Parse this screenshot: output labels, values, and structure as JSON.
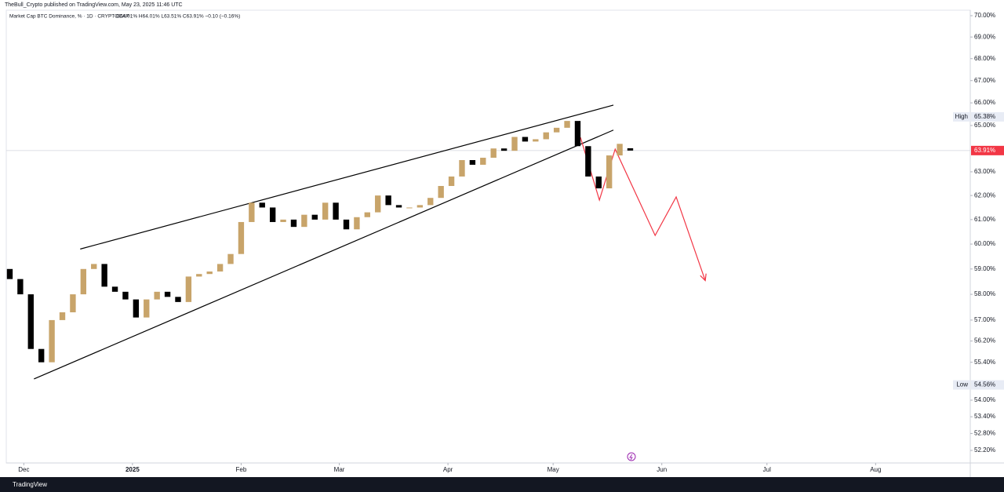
{
  "header": "TheBull_Crypto published on TradingView.com, May 23, 2025 11:46 UTC",
  "footer": "TradingView",
  "chart_data": {
    "type": "candlestick",
    "title": "Market Cap BTC Dominance, % · 1D · CRYPTOCAP",
    "ohlc_text": "O64.01% H64.01% L63.51% C63.91% −0.10 (−0.16%)",
    "log_scale": true,
    "up_color": "#c8a46a",
    "down_color": "#000000",
    "x": [
      -4,
      -1,
      2,
      5,
      8,
      11,
      14,
      17,
      20,
      23,
      26,
      29,
      32,
      35,
      38,
      41,
      44,
      47,
      50,
      53,
      56,
      59,
      62,
      65,
      68,
      71,
      74,
      77,
      80,
      83,
      86,
      89,
      92,
      95,
      98,
      101,
      104,
      107,
      110,
      113,
      116,
      119,
      122,
      125,
      128,
      131,
      134,
      137,
      140,
      143,
      146,
      149,
      152,
      155,
      158,
      161,
      164,
      167,
      170,
      173
    ],
    "open": [
      59.0,
      58.6,
      58.0,
      55.9,
      55.4,
      57.0,
      57.3,
      58.0,
      59.0,
      59.2,
      58.3,
      58.1,
      57.8,
      57.1,
      57.8,
      58.1,
      57.9,
      57.7,
      58.7,
      58.8,
      58.9,
      59.2,
      59.6,
      60.9,
      61.7,
      61.5,
      60.9,
      61.0,
      60.7,
      61.2,
      61.0,
      61.7,
      61.0,
      60.6,
      61.1,
      61.3,
      62.0,
      61.6,
      61.5,
      61.5,
      61.6,
      61.9,
      62.4,
      62.8,
      63.5,
      63.3,
      63.6,
      64.0,
      63.9,
      64.5,
      64.3,
      64.4,
      64.7,
      64.9,
      65.2,
      64.1,
      62.8,
      62.3,
      63.7,
      64.01
    ],
    "high": {
      "name": "High",
      "value": 65.38,
      "label": "65.38%"
    },
    "low": {
      "name": "Low",
      "value": 54.56,
      "label": "54.56%"
    },
    "close": [
      58.6,
      58.0,
      55.9,
      55.4,
      57.0,
      57.3,
      58.0,
      59.0,
      59.2,
      58.3,
      58.1,
      57.8,
      57.1,
      57.8,
      58.1,
      57.9,
      57.7,
      58.7,
      58.8,
      58.9,
      59.2,
      59.6,
      60.9,
      61.7,
      61.5,
      60.9,
      61.0,
      60.7,
      61.2,
      61.0,
      61.7,
      61.0,
      60.6,
      61.1,
      61.3,
      62.0,
      61.6,
      61.5,
      61.5,
      61.6,
      61.9,
      62.4,
      62.8,
      63.5,
      63.3,
      63.6,
      64.0,
      63.9,
      64.5,
      64.3,
      64.4,
      64.7,
      64.9,
      65.2,
      64.1,
      62.8,
      62.3,
      63.7,
      64.2,
      63.91
    ],
    "xlim": [
      -5,
      270
    ],
    "xticks": [
      {
        "value": 0,
        "label": "Dec"
      },
      {
        "value": 31,
        "label": "2025"
      },
      {
        "value": 62,
        "label": "Feb"
      },
      {
        "value": 90,
        "label": "Mar"
      },
      {
        "value": 121,
        "label": "Apr"
      },
      {
        "value": 151,
        "label": "May"
      },
      {
        "value": 182,
        "label": "Jun"
      },
      {
        "value": 212,
        "label": "Jul"
      },
      {
        "value": 243,
        "label": "Aug"
      }
    ],
    "ylim": [
      51.76,
      70.26
    ],
    "yticks": [
      {
        "value": 70,
        "label": "70.00%"
      },
      {
        "value": 69,
        "label": "69.00%"
      },
      {
        "value": 68,
        "label": "68.00%"
      },
      {
        "value": 67,
        "label": "67.00%"
      },
      {
        "value": 66,
        "label": "66.00%"
      },
      {
        "value": 65,
        "label": "65.00%"
      },
      {
        "value": 63,
        "label": "63.00%"
      },
      {
        "value": 62,
        "label": "62.00%"
      },
      {
        "value": 61,
        "label": "61.00%"
      },
      {
        "value": 60,
        "label": "60.00%"
      },
      {
        "value": 59,
        "label": "59.00%"
      },
      {
        "value": 58,
        "label": "58.00%"
      },
      {
        "value": 57,
        "label": "57.00%"
      },
      {
        "value": 56.2,
        "label": "56.20%"
      },
      {
        "value": 55.4,
        "label": "55.40%"
      },
      {
        "value": 54,
        "label": "54.00%"
      },
      {
        "value": 53.4,
        "label": "53.40%"
      },
      {
        "value": 52.8,
        "label": "52.80%"
      },
      {
        "value": 52.2,
        "label": "52.20%"
      }
    ],
    "last_price": {
      "value": 63.91,
      "label": "63.91%",
      "color": "#f23645"
    },
    "drawings": [
      {
        "color": "#000000",
        "x": [
          16.1,
          168.2
        ],
        "y": [
          59.8,
          65.9
        ]
      },
      {
        "color": "#000000",
        "x": [
          2.9,
          168.2
        ],
        "y": [
          54.78,
          64.8
        ]
      },
      {
        "color": "#f23645",
        "arrow": true,
        "x": [
          158.8,
          164.2,
          168.7,
          180.1,
          186.1,
          194.4
        ],
        "y": [
          64.48,
          61.81,
          63.97,
          60.35,
          61.94,
          58.54
        ]
      }
    ]
  }
}
